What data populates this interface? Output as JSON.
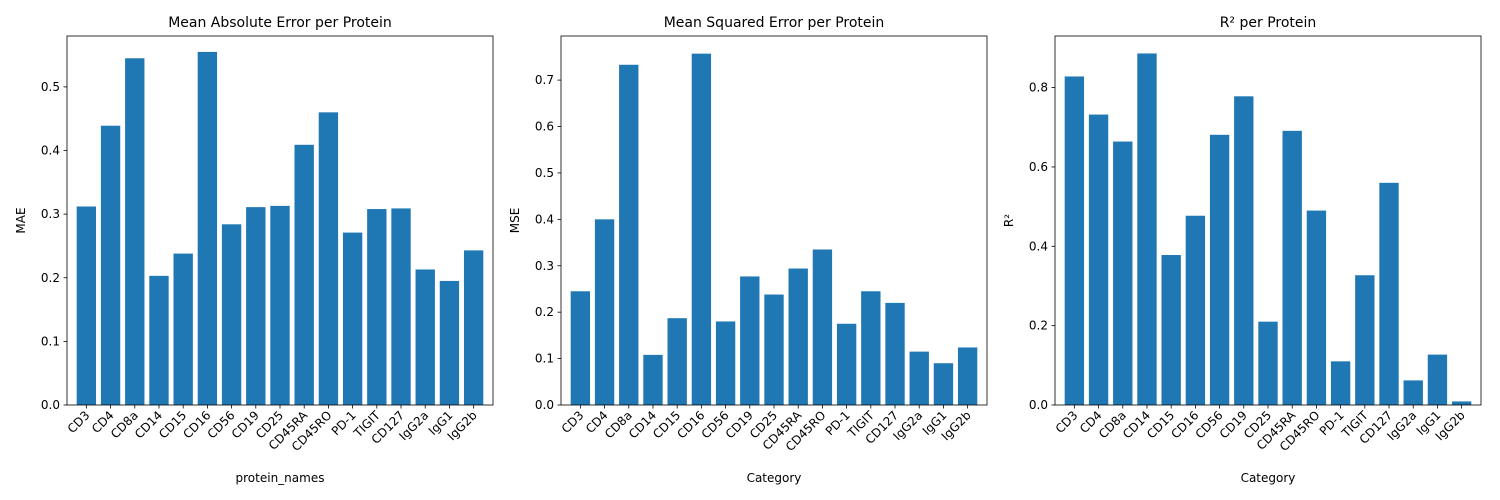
{
  "chart_data": [
    {
      "type": "bar",
      "title": "Mean Absolute Error per Protein",
      "xlabel": "protein_names",
      "ylabel": "MAE",
      "ylim": [
        0,
        0.58
      ],
      "yticks": [
        0.0,
        0.1,
        0.2,
        0.3,
        0.4,
        0.5
      ],
      "ytick_labels": [
        "0.0",
        "0.1",
        "0.2",
        "0.3",
        "0.4",
        "0.5"
      ],
      "grid": false,
      "bar_color": "#1f77b4",
      "categories": [
        "CD3",
        "CD4",
        "CD8a",
        "CD14",
        "CD15",
        "CD16",
        "CD56",
        "CD19",
        "CD25",
        "CD45RA",
        "CD45RO",
        "PD-1",
        "TIGIT",
        "CD127",
        "IgG2a",
        "IgG1",
        "IgG2b"
      ],
      "values": [
        0.312,
        0.439,
        0.545,
        0.203,
        0.238,
        0.555,
        0.284,
        0.311,
        0.313,
        0.409,
        0.46,
        0.271,
        0.308,
        0.309,
        0.213,
        0.195,
        0.243
      ]
    },
    {
      "type": "bar",
      "title": "Mean Squared Error per Protein",
      "xlabel": "Category",
      "ylabel": "MSE",
      "ylim": [
        0,
        0.795
      ],
      "yticks": [
        0.0,
        0.1,
        0.2,
        0.3,
        0.4,
        0.5,
        0.6,
        0.7
      ],
      "ytick_labels": [
        "0.0",
        "0.1",
        "0.2",
        "0.3",
        "0.4",
        "0.5",
        "0.6",
        "0.7"
      ],
      "grid": false,
      "bar_color": "#1f77b4",
      "categories": [
        "CD3",
        "CD4",
        "CD8a",
        "CD14",
        "CD15",
        "CD16",
        "CD56",
        "CD19",
        "CD25",
        "CD45RA",
        "CD45RO",
        "PD-1",
        "TIGIT",
        "CD127",
        "IgG2a",
        "IgG1",
        "IgG2b"
      ],
      "values": [
        0.245,
        0.4,
        0.733,
        0.108,
        0.187,
        0.757,
        0.18,
        0.277,
        0.238,
        0.294,
        0.335,
        0.175,
        0.245,
        0.22,
        0.115,
        0.09,
        0.124
      ]
    },
    {
      "type": "bar",
      "title": "R² per Protein",
      "xlabel": "Category",
      "ylabel": "R²",
      "ylim": [
        0,
        0.93
      ],
      "yticks": [
        0.0,
        0.2,
        0.4,
        0.6,
        0.8
      ],
      "ytick_labels": [
        "0.0",
        "0.2",
        "0.4",
        "0.6",
        "0.8"
      ],
      "grid": false,
      "bar_color": "#1f77b4",
      "categories": [
        "CD3",
        "CD4",
        "CD8a",
        "CD14",
        "CD15",
        "CD16",
        "CD56",
        "CD19",
        "CD25",
        "CD45RA",
        "CD45RO",
        "PD-1",
        "TIGIT",
        "CD127",
        "IgG2a",
        "IgG1",
        "IgG2b"
      ],
      "values": [
        0.828,
        0.732,
        0.664,
        0.886,
        0.378,
        0.477,
        0.681,
        0.778,
        0.21,
        0.691,
        0.49,
        0.11,
        0.327,
        0.56,
        0.062,
        0.127,
        0.009
      ]
    }
  ]
}
